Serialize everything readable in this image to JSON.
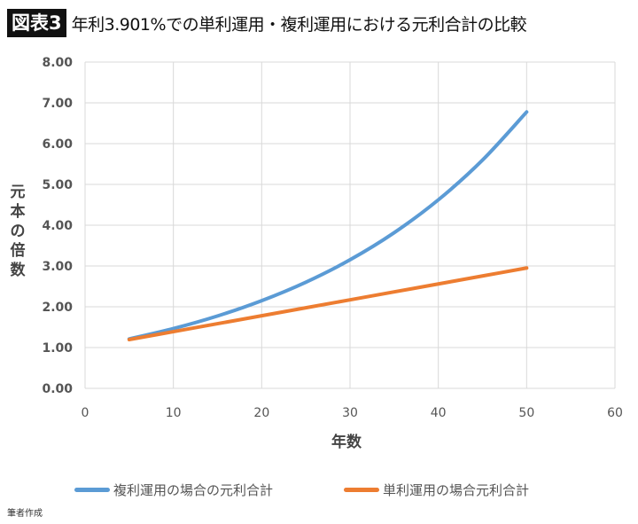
{
  "title": {
    "badge": "図表3",
    "text": "年利3.901%での単利運用・複利運用における元利合計の比較"
  },
  "source": "筆者作成",
  "chart_data": {
    "type": "line",
    "xlabel": "年数",
    "ylabel": "元本の倍数",
    "xlim": [
      0,
      60
    ],
    "ylim": [
      0,
      8
    ],
    "xticks": [
      "0",
      "10",
      "20",
      "30",
      "40",
      "50",
      "60"
    ],
    "yticks": [
      "0.00",
      "1.00",
      "2.00",
      "3.00",
      "4.00",
      "5.00",
      "6.00",
      "7.00",
      "8.00"
    ],
    "grid": true,
    "legend": "bottom",
    "x": [
      5,
      10,
      15,
      20,
      25,
      30,
      35,
      40,
      45,
      50
    ],
    "series": [
      {
        "name": "複利運用の場合の元利合計",
        "color": "#5b9bd5",
        "values": [
          1.211,
          1.466,
          1.775,
          2.15,
          2.603,
          3.152,
          3.817,
          4.622,
          5.596,
          6.776
        ]
      },
      {
        "name": "単利運用の場合元利合計",
        "color": "#ed7d31",
        "values": [
          1.195,
          1.39,
          1.585,
          1.78,
          1.975,
          2.17,
          2.365,
          2.56,
          2.755,
          2.951
        ]
      }
    ]
  }
}
